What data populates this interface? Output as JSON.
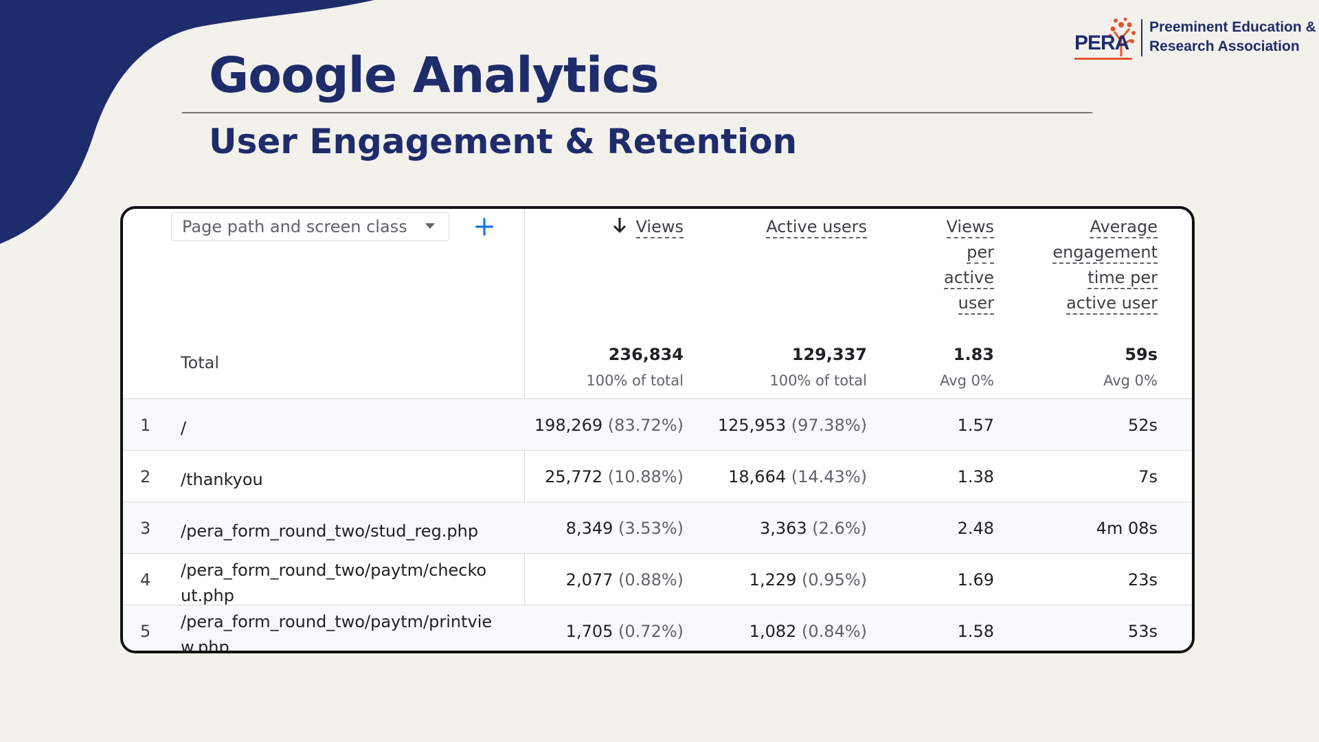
{
  "header": {
    "title": "Google Analytics",
    "subtitle": "User Engagement & Retention"
  },
  "logo": {
    "wordmark": "PERA",
    "name_line1": "Preeminent Education &",
    "name_line2": "Research Association"
  },
  "colors": {
    "brand_navy": "#1f2c6b",
    "logo_orange": "#e0552b",
    "ga_blue": "#1a73e8",
    "row_shade": "#f8f9fa"
  },
  "report": {
    "dimension_select": "Page path and screen class",
    "add_icon": "plus-icon",
    "sort_icon": "arrow-down-icon",
    "columns": {
      "views": [
        "Views"
      ],
      "active_users": [
        "Active users"
      ],
      "views_per_user": [
        "Views",
        "per",
        "active",
        "user"
      ],
      "avg_engagement": [
        "Average",
        "engagement",
        "time per",
        "active user"
      ]
    },
    "totals": {
      "label": "Total",
      "views": "236,834",
      "views_sub": "100% of total",
      "active_users": "129,337",
      "active_users_sub": "100% of total",
      "views_per_user": "1.83",
      "views_per_user_sub": "Avg 0%",
      "avg_engagement": "59s",
      "avg_engagement_sub": "Avg 0%"
    },
    "rows": [
      {
        "index": "1",
        "path_lines": [
          "/"
        ],
        "views": "198,269",
        "views_pct": "(83.72%)",
        "users": "125,953",
        "users_pct": "(97.38%)",
        "vpu": "1.57",
        "eng": "52s"
      },
      {
        "index": "2",
        "path_lines": [
          "/thankyou"
        ],
        "views": "25,772",
        "views_pct": "(10.88%)",
        "users": "18,664",
        "users_pct": "(14.43%)",
        "vpu": "1.38",
        "eng": "7s"
      },
      {
        "index": "3",
        "path_lines": [
          "/pera_form_round_two/stud_reg.php"
        ],
        "views": "8,349",
        "views_pct": "(3.53%)",
        "users": "3,363",
        "users_pct": "(2.6%)",
        "vpu": "2.48",
        "eng": "4m 08s"
      },
      {
        "index": "4",
        "path_lines": [
          "/pera_form_round_two/paytm/checko",
          "ut.php"
        ],
        "views": "2,077",
        "views_pct": "(0.88%)",
        "users": "1,229",
        "users_pct": "(0.95%)",
        "vpu": "1.69",
        "eng": "23s"
      },
      {
        "index": "5",
        "path_lines": [
          "/pera_form_round_two/paytm/printvie",
          "w.php"
        ],
        "views": "1,705",
        "views_pct": "(0.72%)",
        "users": "1,082",
        "users_pct": "(0.84%)",
        "vpu": "1.58",
        "eng": "53s"
      }
    ]
  }
}
